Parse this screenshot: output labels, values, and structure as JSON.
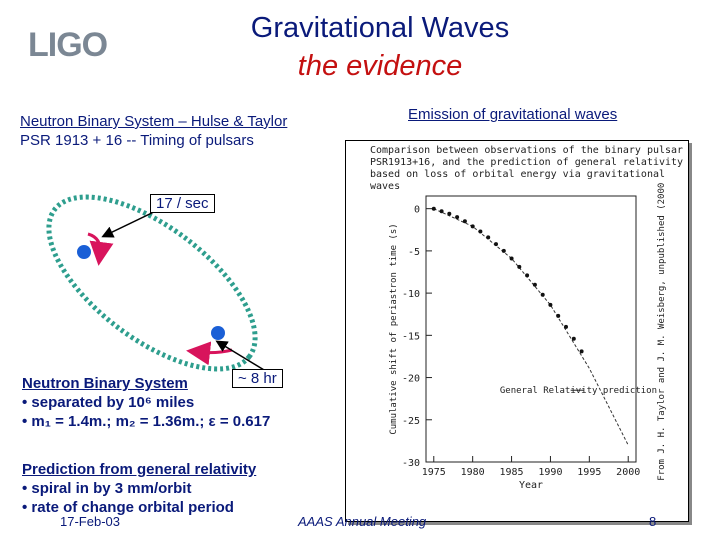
{
  "header": {
    "logo": "LIGO",
    "title": "Gravitational Waves",
    "subtitle": "the evidence"
  },
  "left": {
    "heading_line1": "Neutron Binary System – Hulse & Taylor",
    "heading_line2": "PSR 1913 + 16  -- Timing of pulsars",
    "label_rate": "17 / sec",
    "label_period": "~ 8 hr",
    "system_title": "Neutron Binary System",
    "bullet1": "• separated by 10⁶ miles",
    "bullet2": "• m₁ = 1.4m.; m₂ = 1.36m.; ε = 0.617",
    "prediction_title": "Prediction from general relativity",
    "pred1": "• spiral in by 3 mm/orbit",
    "pred2": "• rate of change orbital period"
  },
  "right": {
    "heading": "Emission of gravitational waves",
    "caption": "Comparison between observations of the binary pulsar PSR1913+16, and the prediction of general relativity based on loss of orbital energy via gravitational waves",
    "y_label": "Cumulative shift of periastron time (s)",
    "x_label": "Year",
    "curve_label": "General Relativity prediction",
    "credit": "From J. H. Taylor and J. M. Weisberg, unpublished (2000)"
  },
  "footer": {
    "date": "17-Feb-03",
    "meeting": "AAAS Annual Meeting",
    "page": "8"
  },
  "chart_data": {
    "type": "scatter",
    "x": [
      1975,
      1976,
      1977,
      1978,
      1979,
      1980,
      1981,
      1982,
      1983,
      1984,
      1985,
      1986,
      1987,
      1988,
      1989,
      1990,
      1991,
      1992,
      1993,
      1994
    ],
    "y": [
      0,
      -0.3,
      -0.6,
      -1.0,
      -1.5,
      -2.1,
      -2.7,
      -3.4,
      -4.2,
      -5.0,
      -5.9,
      -6.9,
      -7.9,
      -9.0,
      -10.2,
      -11.4,
      -12.7,
      -14.0,
      -15.4,
      -16.9
    ],
    "curve_x": [
      1975,
      1980,
      1985,
      1990,
      1995,
      2000
    ],
    "curve_y": [
      0,
      -2.1,
      -5.9,
      -11.4,
      -18.9,
      -28.0
    ],
    "x_ticks": [
      1975,
      1980,
      1985,
      1990,
      1995,
      2000
    ],
    "y_ticks": [
      0,
      -5,
      -10,
      -15,
      -20,
      -25,
      -30
    ],
    "xlim": [
      1974,
      2001
    ],
    "ylim": [
      -30,
      1.5
    ]
  }
}
